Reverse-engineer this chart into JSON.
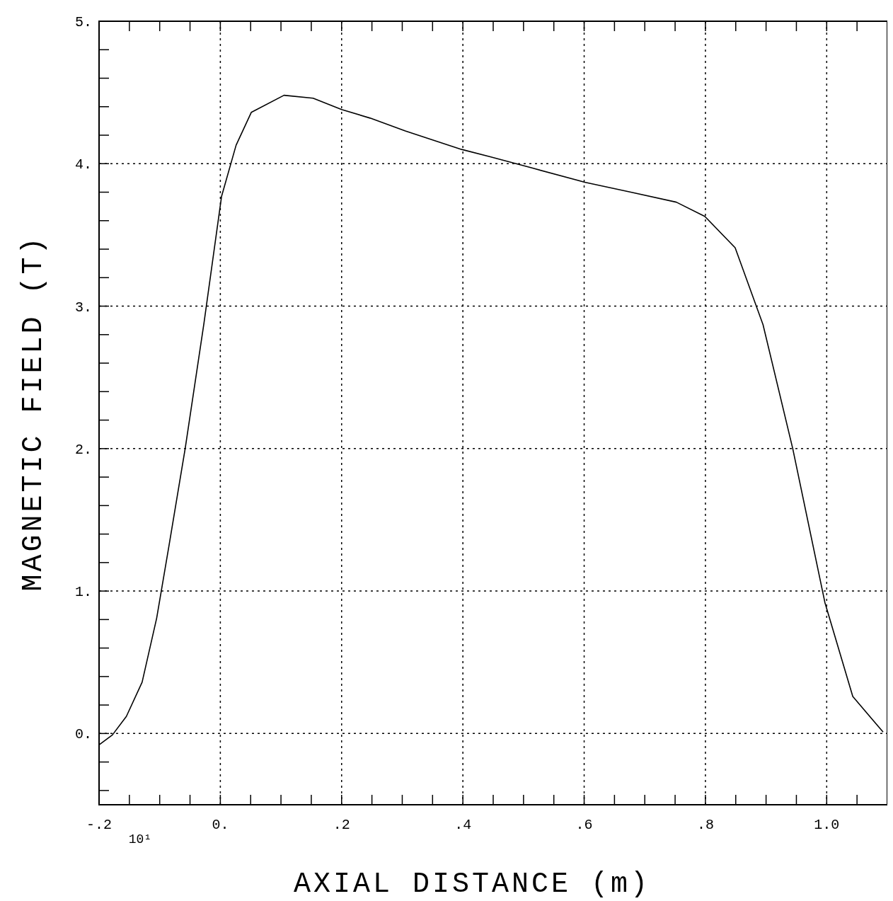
{
  "chart_data": {
    "type": "line",
    "xlabel": "AXIAL DISTANCE (m)",
    "ylabel": "MAGNETIC FIELD (T)",
    "annotations": [
      "10¹"
    ],
    "x": [
      -0.2,
      -0.178,
      -0.155,
      -0.129,
      -0.105,
      -0.085,
      -0.058,
      -0.027,
      0.002,
      0.026,
      0.051,
      0.105,
      0.153,
      0.2,
      0.247,
      0.305,
      0.398,
      0.444,
      0.514,
      0.601,
      0.677,
      0.752,
      0.799,
      0.849,
      0.895,
      0.944,
      0.997,
      1.043,
      1.093
    ],
    "series": [
      {
        "color": "#000000",
        "values": [
          -0.08,
          -0.01,
          0.12,
          0.36,
          0.81,
          1.31,
          2.0,
          2.88,
          3.77,
          4.13,
          4.36,
          4.48,
          4.46,
          4.38,
          4.32,
          4.23,
          4.1,
          4.05,
          3.97,
          3.87,
          3.8,
          3.73,
          3.63,
          3.41,
          2.87,
          2.0,
          0.92,
          0.26,
          0.01
        ]
      }
    ],
    "xlim": [
      -0.2,
      1.1
    ],
    "ylim": [
      -0.5,
      5
    ],
    "xticks": [
      {
        "value": -0.2,
        "label": "-.2"
      },
      {
        "value": -0.15,
        "label": null
      },
      {
        "value": -0.1,
        "label": null
      },
      {
        "value": -0.05,
        "label": null
      },
      {
        "value": 0,
        "label": "0."
      },
      {
        "value": 0.05,
        "label": null
      },
      {
        "value": 0.1,
        "label": null
      },
      {
        "value": 0.15,
        "label": null
      },
      {
        "value": 0.2,
        "label": ".2"
      },
      {
        "value": 0.25,
        "label": null
      },
      {
        "value": 0.3,
        "label": null
      },
      {
        "value": 0.35,
        "label": null
      },
      {
        "value": 0.4,
        "label": ".4"
      },
      {
        "value": 0.45,
        "label": null
      },
      {
        "value": 0.5,
        "label": null
      },
      {
        "value": 0.55,
        "label": null
      },
      {
        "value": 0.6,
        "label": ".6"
      },
      {
        "value": 0.65,
        "label": null
      },
      {
        "value": 0.7,
        "label": null
      },
      {
        "value": 0.75,
        "label": null
      },
      {
        "value": 0.8,
        "label": ".8"
      },
      {
        "value": 0.85,
        "label": null
      },
      {
        "value": 0.9,
        "label": null
      },
      {
        "value": 0.95,
        "label": null
      },
      {
        "value": 1,
        "label": "1.0"
      },
      {
        "value": 1.05,
        "label": null
      },
      {
        "value": 1.1,
        "label": null
      }
    ],
    "yticks": [
      {
        "value": -0.4,
        "label": null
      },
      {
        "value": -0.2,
        "label": null
      },
      {
        "value": 0,
        "label": "0."
      },
      {
        "value": 0.2,
        "label": null
      },
      {
        "value": 0.4,
        "label": null
      },
      {
        "value": 0.6,
        "label": null
      },
      {
        "value": 0.8,
        "label": null
      },
      {
        "value": 1,
        "label": "1."
      },
      {
        "value": 1.2,
        "label": null
      },
      {
        "value": 1.4,
        "label": null
      },
      {
        "value": 1.6,
        "label": null
      },
      {
        "value": 1.8,
        "label": null
      },
      {
        "value": 2,
        "label": "2."
      },
      {
        "value": 2.2,
        "label": null
      },
      {
        "value": 2.4,
        "label": null
      },
      {
        "value": 2.6,
        "label": null
      },
      {
        "value": 2.8,
        "label": null
      },
      {
        "value": 3,
        "label": "3."
      },
      {
        "value": 3.2,
        "label": null
      },
      {
        "value": 3.4,
        "label": null
      },
      {
        "value": 3.6,
        "label": null
      },
      {
        "value": 3.8,
        "label": null
      },
      {
        "value": 4,
        "label": "4."
      },
      {
        "value": 4.2,
        "label": null
      },
      {
        "value": 4.4,
        "label": null
      },
      {
        "value": 4.6,
        "label": null
      },
      {
        "value": 4.8,
        "label": null
      },
      {
        "value": 5,
        "label": "5."
      }
    ],
    "grid": true,
    "line_style": "solid",
    "marker": "none"
  }
}
